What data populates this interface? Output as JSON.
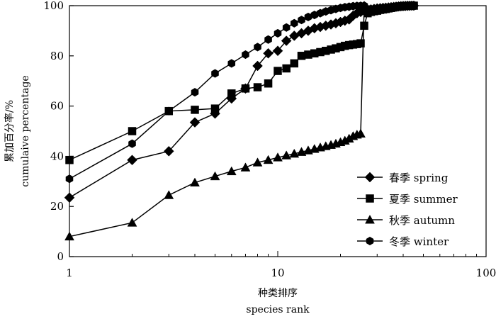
{
  "chart_data": {
    "type": "line",
    "xscale": "log",
    "xlim": [
      1,
      100
    ],
    "ylim": [
      0,
      100
    ],
    "xticks": [
      1,
      10,
      100
    ],
    "yticks": [
      0,
      20,
      40,
      60,
      80,
      100
    ],
    "xlabel_cn": "种类排序",
    "xlabel_en": "species rank",
    "ylabel_cn": "累加百分率/%",
    "ylabel_en": "cumulaive percentage",
    "grid": false,
    "legend_position": "bottom-right",
    "series": [
      {
        "name": "春季  spring",
        "marker": "diamond",
        "x": [
          1,
          2,
          3,
          4,
          5,
          6,
          7,
          8,
          9,
          10,
          11,
          12,
          13,
          14,
          15,
          16,
          17,
          18,
          19,
          20,
          21,
          22,
          23,
          24,
          25,
          26,
          27,
          28,
          29,
          30,
          31,
          32,
          33,
          34,
          35,
          36,
          37,
          38,
          39,
          40,
          41,
          42,
          43,
          44,
          45
        ],
        "y": [
          23.5,
          38.5,
          42,
          53.5,
          57,
          63,
          67,
          76,
          81,
          82,
          86,
          88,
          89,
          90,
          91,
          91.5,
          92,
          92.5,
          93,
          93.5,
          94,
          94.5,
          96,
          97,
          97.5,
          98,
          98.3,
          98.5,
          98.7,
          98.9,
          99,
          99.1,
          99.2,
          99.3,
          99.4,
          99.5,
          99.6,
          99.7,
          99.8,
          99.85,
          99.9,
          99.95,
          99.97,
          99.99,
          100
        ]
      },
      {
        "name": "夏季  summer",
        "marker": "square",
        "x": [
          1,
          2,
          3,
          4,
          5,
          6,
          7,
          8,
          9,
          10,
          11,
          12,
          13,
          14,
          15,
          16,
          17,
          18,
          19,
          20,
          21,
          22,
          23,
          24,
          25,
          26,
          27,
          28,
          29,
          30,
          31,
          32,
          33,
          34,
          35,
          36,
          37,
          38,
          39,
          40,
          41,
          42,
          43,
          44,
          45
        ],
        "y": [
          38.5,
          50,
          58,
          58.5,
          59,
          65,
          67,
          67.5,
          69,
          74,
          75,
          77,
          80,
          80.5,
          81,
          81.5,
          82,
          82.5,
          83,
          83.5,
          84,
          84.3,
          84.5,
          84.7,
          85,
          92,
          97,
          97.5,
          97.8,
          98,
          98.3,
          98.5,
          98.7,
          98.9,
          99.1,
          99.3,
          99.5,
          99.6,
          99.7,
          99.8,
          99.85,
          99.9,
          99.95,
          99.98,
          100
        ]
      },
      {
        "name": "秋季 autumn",
        "marker": "triangle",
        "x": [
          1,
          2,
          3,
          4,
          5,
          6,
          7,
          8,
          9,
          10,
          11,
          12,
          13,
          14,
          15,
          16,
          17,
          18,
          19,
          20,
          21,
          22,
          23,
          24,
          25,
          26
        ],
        "y": [
          8,
          13.5,
          24.5,
          29.5,
          32,
          34,
          35.5,
          37.5,
          38.5,
          39.5,
          40.3,
          41,
          41.7,
          42.3,
          42.9,
          43.5,
          44,
          44.5,
          45,
          45.6,
          46.2,
          47,
          48,
          48.6,
          49,
          100
        ]
      },
      {
        "name": "冬季  winter",
        "marker": "hexagon",
        "x": [
          1,
          2,
          3,
          4,
          5,
          6,
          7,
          8,
          9,
          10,
          11,
          12,
          13,
          14,
          15,
          16,
          17,
          18,
          19,
          20,
          21,
          22,
          23,
          24,
          25,
          26
        ],
        "y": [
          31,
          45,
          58,
          65.5,
          73,
          77,
          80.5,
          83.5,
          86.5,
          89,
          91.3,
          93,
          94.3,
          95.5,
          96.3,
          97,
          97.7,
          98.2,
          98.7,
          99.1,
          99.4,
          99.6,
          99.8,
          99.9,
          99.95,
          100
        ]
      }
    ]
  }
}
